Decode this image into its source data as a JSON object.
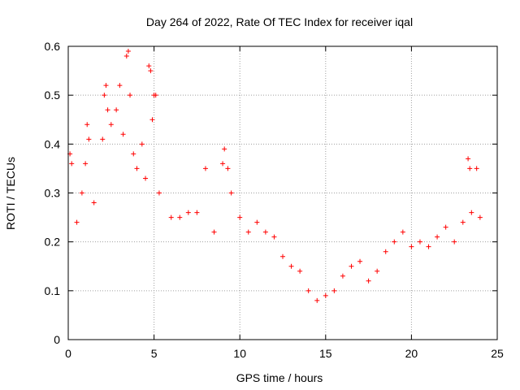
{
  "chart_data": {
    "type": "scatter",
    "title": "Day 264 of 2022, Rate Of TEC Index for receiver iqal",
    "xlabel": "GPS time / hours",
    "ylabel": "ROTI / TECUs",
    "xlim": [
      0,
      25
    ],
    "ylim": [
      0,
      0.6
    ],
    "x_ticks": [
      "0",
      "5",
      "10",
      "15",
      "20",
      "25"
    ],
    "y_ticks": [
      "0",
      "0.1",
      "0.2",
      "0.3",
      "0.4",
      "0.5",
      "0.6"
    ],
    "x_tick_values": [
      0,
      5,
      10,
      15,
      20,
      25
    ],
    "y_tick_values": [
      0,
      0.1,
      0.2,
      0.3,
      0.4,
      0.5,
      0.6
    ],
    "grid": true,
    "marker": "+",
    "color": "#ff0000",
    "series": [
      {
        "points": [
          [
            0.1,
            0.38
          ],
          [
            0.2,
            0.36
          ],
          [
            0.5,
            0.24
          ],
          [
            0.8,
            0.3
          ],
          [
            1.0,
            0.36
          ],
          [
            1.1,
            0.44
          ],
          [
            1.2,
            0.41
          ],
          [
            1.5,
            0.28
          ],
          [
            2.0,
            0.41
          ],
          [
            2.1,
            0.5
          ],
          [
            2.2,
            0.52
          ],
          [
            2.3,
            0.47
          ],
          [
            2.5,
            0.44
          ],
          [
            2.8,
            0.47
          ],
          [
            3.0,
            0.52
          ],
          [
            3.2,
            0.42
          ],
          [
            3.4,
            0.58
          ],
          [
            3.5,
            0.59
          ],
          [
            3.6,
            0.5
          ],
          [
            3.8,
            0.38
          ],
          [
            4.0,
            0.35
          ],
          [
            4.3,
            0.4
          ],
          [
            4.5,
            0.33
          ],
          [
            4.7,
            0.56
          ],
          [
            4.8,
            0.55
          ],
          [
            4.9,
            0.45
          ],
          [
            5.0,
            0.5
          ],
          [
            5.1,
            0.5
          ],
          [
            5.3,
            0.3
          ],
          [
            6.0,
            0.25
          ],
          [
            6.5,
            0.25
          ],
          [
            7.0,
            0.26
          ],
          [
            7.5,
            0.26
          ],
          [
            8.0,
            0.35
          ],
          [
            8.5,
            0.22
          ],
          [
            9.0,
            0.36
          ],
          [
            9.1,
            0.39
          ],
          [
            9.3,
            0.35
          ],
          [
            9.5,
            0.3
          ],
          [
            10.0,
            0.25
          ],
          [
            10.5,
            0.22
          ],
          [
            11.0,
            0.24
          ],
          [
            11.5,
            0.22
          ],
          [
            12.0,
            0.21
          ],
          [
            12.5,
            0.17
          ],
          [
            13.0,
            0.15
          ],
          [
            13.5,
            0.14
          ],
          [
            14.0,
            0.1
          ],
          [
            14.5,
            0.08
          ],
          [
            15.0,
            0.09
          ],
          [
            15.5,
            0.1
          ],
          [
            16.0,
            0.13
          ],
          [
            16.5,
            0.15
          ],
          [
            17.0,
            0.16
          ],
          [
            17.5,
            0.12
          ],
          [
            18.0,
            0.14
          ],
          [
            18.5,
            0.18
          ],
          [
            19.0,
            0.2
          ],
          [
            19.5,
            0.22
          ],
          [
            20.0,
            0.19
          ],
          [
            20.5,
            0.2
          ],
          [
            21.0,
            0.19
          ],
          [
            21.5,
            0.21
          ],
          [
            22.0,
            0.23
          ],
          [
            22.5,
            0.2
          ],
          [
            23.0,
            0.24
          ],
          [
            23.3,
            0.37
          ],
          [
            23.4,
            0.35
          ],
          [
            23.5,
            0.26
          ],
          [
            23.8,
            0.35
          ],
          [
            24.0,
            0.25
          ]
        ]
      }
    ]
  }
}
